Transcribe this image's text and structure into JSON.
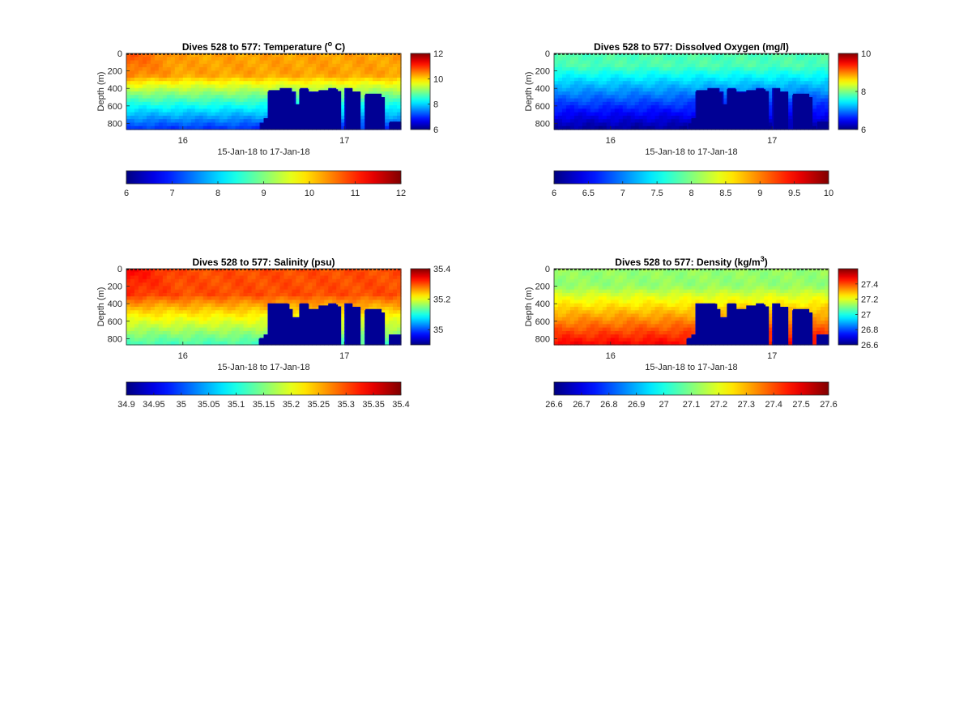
{
  "figure": {
    "background": "#ffffff"
  },
  "chart_data": [
    {
      "type": "heatmap",
      "variable": "temperature",
      "title": "Dives 528 to 577: Temperature (",
      "title_sup": "o",
      "title_after": " C)",
      "ylabel": "Depth (m)",
      "xlabel": "15-Jan-18 to 17-Jan-18",
      "xlim": [
        15.65,
        17.35
      ],
      "ylim": [
        870,
        0
      ],
      "x_ticks": [
        16,
        17
      ],
      "y_ticks": [
        0,
        200,
        400,
        600,
        800
      ],
      "colormap": "jet",
      "clim": [
        6,
        12
      ],
      "side_colorbar_ticks": [
        6,
        8,
        10,
        12
      ],
      "bottom_colorbar_ticks": [
        6,
        7,
        8,
        9,
        10,
        11,
        12
      ],
      "surface_value": 10.3,
      "bottom_value": 7.0,
      "gradient_start_depth": 250,
      "early_warm_anomaly": 0.5,
      "seafloor_profile": [
        [
          15.65,
          870
        ],
        [
          16.45,
          870
        ],
        [
          16.48,
          800
        ],
        [
          16.5,
          740
        ],
        [
          16.53,
          420
        ],
        [
          16.6,
          400
        ],
        [
          16.67,
          450
        ],
        [
          16.69,
          580
        ],
        [
          16.72,
          410
        ],
        [
          16.78,
          450
        ],
        [
          16.84,
          420
        ],
        [
          16.9,
          410
        ],
        [
          16.96,
          430
        ],
        [
          16.98,
          870
        ],
        [
          17.01,
          400
        ],
        [
          17.05,
          440
        ],
        [
          17.1,
          870
        ],
        [
          17.13,
          460
        ],
        [
          17.23,
          500
        ],
        [
          17.25,
          870
        ],
        [
          17.28,
          780
        ],
        [
          17.35,
          780
        ]
      ]
    },
    {
      "type": "heatmap",
      "variable": "dissolved_oxygen",
      "title": "Dives 528 to 577: Dissolved Oxygen (mg/l)",
      "ylabel": "Depth (m)",
      "xlabel": "15-Jan-18 to 17-Jan-18",
      "xlim": [
        15.65,
        17.35
      ],
      "ylim": [
        870,
        0
      ],
      "x_ticks": [
        16,
        17
      ],
      "y_ticks": [
        0,
        200,
        400,
        600,
        800
      ],
      "colormap": "jet",
      "clim": [
        6,
        10
      ],
      "side_colorbar_ticks": [
        6,
        8,
        10
      ],
      "bottom_colorbar_ticks": [
        6,
        6.5,
        7,
        7.5,
        8,
        8.5,
        9,
        9.5,
        10
      ],
      "surface_value": 7.8,
      "bottom_value": 6.1,
      "gradient_start_depth": 150,
      "early_warm_anomaly": 0,
      "seafloor_profile": [
        [
          15.65,
          870
        ],
        [
          16.45,
          870
        ],
        [
          16.48,
          800
        ],
        [
          16.5,
          740
        ],
        [
          16.53,
          420
        ],
        [
          16.6,
          400
        ],
        [
          16.67,
          450
        ],
        [
          16.69,
          580
        ],
        [
          16.72,
          410
        ],
        [
          16.78,
          450
        ],
        [
          16.84,
          420
        ],
        [
          16.9,
          410
        ],
        [
          16.96,
          430
        ],
        [
          16.98,
          870
        ],
        [
          17.01,
          400
        ],
        [
          17.05,
          440
        ],
        [
          17.1,
          870
        ],
        [
          17.13,
          460
        ],
        [
          17.23,
          500
        ],
        [
          17.25,
          870
        ],
        [
          17.28,
          780
        ],
        [
          17.35,
          780
        ]
      ]
    },
    {
      "type": "heatmap",
      "variable": "salinity",
      "title": "Dives 528 to 577: Salinity (psu)",
      "ylabel": "Depth (m)",
      "xlabel": "15-Jan-18 to 17-Jan-18",
      "xlim": [
        15.65,
        17.35
      ],
      "ylim": [
        870,
        0
      ],
      "x_ticks": [
        16,
        17
      ],
      "y_ticks": [
        0,
        200,
        400,
        600,
        800
      ],
      "colormap": "jet",
      "clim": [
        34.9,
        35.4
      ],
      "side_colorbar_ticks": [
        35,
        35.2,
        35.4
      ],
      "bottom_colorbar_ticks": [
        34.9,
        34.95,
        35,
        35.05,
        35.1,
        35.15,
        35.2,
        35.25,
        35.3,
        35.35,
        35.4
      ],
      "surface_value": 35.3,
      "bottom_value": 35.12,
      "gradient_start_depth": 300,
      "early_warm_anomaly": 0.04,
      "seafloor_profile": [
        [
          15.65,
          870
        ],
        [
          16.45,
          870
        ],
        [
          16.47,
          800
        ],
        [
          16.5,
          760
        ],
        [
          16.53,
          400
        ],
        [
          16.6,
          400
        ],
        [
          16.66,
          460
        ],
        [
          16.68,
          570
        ],
        [
          16.72,
          400
        ],
        [
          16.78,
          460
        ],
        [
          16.84,
          420
        ],
        [
          16.9,
          410
        ],
        [
          16.96,
          430
        ],
        [
          16.98,
          870
        ],
        [
          17.01,
          400
        ],
        [
          17.05,
          440
        ],
        [
          17.1,
          870
        ],
        [
          17.13,
          460
        ],
        [
          17.23,
          500
        ],
        [
          17.25,
          870
        ],
        [
          17.28,
          760
        ],
        [
          17.35,
          760
        ]
      ]
    },
    {
      "type": "heatmap",
      "variable": "density",
      "title": "Dives 528 to 577: Density (kg/m",
      "title_sup": "3",
      "title_after": ")",
      "ylabel": "Depth (m)",
      "xlabel": "15-Jan-18 to 17-Jan-18",
      "xlim": [
        15.65,
        17.35
      ],
      "ylim": [
        870,
        0
      ],
      "x_ticks": [
        16,
        17
      ],
      "y_ticks": [
        0,
        200,
        400,
        600,
        800
      ],
      "colormap": "jet",
      "clim": [
        26.6,
        27.6
      ],
      "side_colorbar_ticks": [
        26.6,
        26.8,
        27,
        27.2,
        27.4
      ],
      "bottom_colorbar_ticks": [
        26.6,
        26.7,
        26.8,
        26.9,
        27,
        27.1,
        27.2,
        27.3,
        27.4,
        27.5,
        27.6
      ],
      "surface_value": 27.12,
      "bottom_value": 27.48,
      "gradient_start_depth": 200,
      "early_warm_anomaly": 0,
      "seafloor_profile": [
        [
          15.65,
          870
        ],
        [
          16.45,
          870
        ],
        [
          16.47,
          800
        ],
        [
          16.5,
          760
        ],
        [
          16.53,
          410
        ],
        [
          16.6,
          400
        ],
        [
          16.66,
          460
        ],
        [
          16.68,
          570
        ],
        [
          16.72,
          400
        ],
        [
          16.78,
          460
        ],
        [
          16.84,
          420
        ],
        [
          16.9,
          410
        ],
        [
          16.96,
          430
        ],
        [
          16.98,
          870
        ],
        [
          17.01,
          400
        ],
        [
          17.05,
          440
        ],
        [
          17.1,
          870
        ],
        [
          17.13,
          460
        ],
        [
          17.23,
          500
        ],
        [
          17.25,
          870
        ],
        [
          17.28,
          760
        ],
        [
          17.35,
          760
        ]
      ]
    }
  ]
}
